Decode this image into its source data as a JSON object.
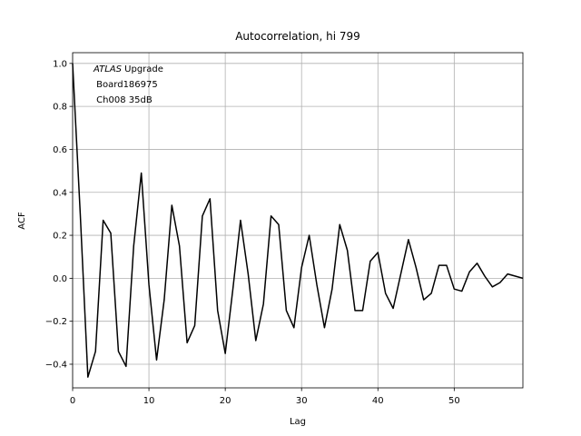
{
  "chart_data": {
    "type": "line",
    "title": "Autocorrelation, hi 799",
    "annotation": [
      [
        {
          "text": "ATLAS",
          "style": "italic"
        },
        {
          "text": " Upgrade",
          "style": "normal"
        }
      ],
      [
        {
          "text": " Board186975",
          "style": "normal"
        }
      ],
      [
        {
          "text": " Ch008 35dB",
          "style": "normal"
        }
      ]
    ],
    "x_label": "Lag",
    "y_label": "ACF",
    "x": [
      0,
      1,
      2,
      3,
      4,
      5,
      6,
      7,
      8,
      9,
      10,
      11,
      12,
      13,
      14,
      15,
      16,
      17,
      18,
      19,
      20,
      21,
      22,
      23,
      24,
      25,
      26,
      27,
      28,
      29,
      30,
      31,
      32,
      33,
      34,
      35,
      36,
      37,
      38,
      39,
      40,
      41,
      42,
      43,
      44,
      45,
      46,
      47,
      48,
      49,
      50,
      51,
      52,
      53,
      54,
      55,
      56,
      57,
      58,
      59
    ],
    "series": [
      {
        "color": "#000000",
        "values": [
          1.0,
          0.3,
          -0.46,
          -0.34,
          0.27,
          0.21,
          -0.34,
          -0.41,
          0.15,
          0.49,
          -0.03,
          -0.38,
          -0.1,
          0.34,
          0.15,
          -0.3,
          -0.22,
          0.29,
          0.37,
          -0.15,
          -0.35,
          -0.05,
          0.27,
          0.02,
          -0.29,
          -0.12,
          0.29,
          0.25,
          -0.15,
          -0.23,
          0.05,
          0.2,
          -0.03,
          -0.23,
          -0.05,
          0.25,
          0.13,
          -0.15,
          -0.15,
          0.08,
          0.12,
          -0.07,
          -0.14,
          0.02,
          0.18,
          0.05,
          -0.1,
          -0.07,
          0.06,
          0.06,
          -0.05,
          -0.06,
          0.03,
          0.07,
          0.01,
          -0.04,
          -0.02,
          0.02,
          0.01,
          0.0
        ]
      }
    ],
    "xlim": [
      0,
      59
    ],
    "xticks": [
      0,
      10,
      20,
      30,
      40,
      50
    ],
    "ylim": [
      -0.51,
      1.05
    ],
    "yticks": [
      {
        "value": -0.4,
        "label": "−0.4"
      },
      {
        "value": -0.2,
        "label": "−0.2"
      },
      {
        "value": 0,
        "label": "0.0"
      },
      0.2,
      0.4,
      0.6,
      0.8,
      {
        "value": 1,
        "label": "1.0"
      }
    ],
    "grid": true
  }
}
